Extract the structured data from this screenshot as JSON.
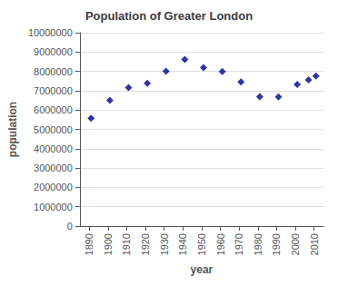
{
  "chart_data": {
    "type": "scatter",
    "title": "Population of Greater London",
    "xlabel": "year",
    "ylabel": "population",
    "x": [
      1891,
      1901,
      1911,
      1921,
      1931,
      1941,
      1951,
      1961,
      1971,
      1981,
      1991,
      2001,
      2007,
      2011
    ],
    "values": [
      5572012,
      6506889,
      7160441,
      7386848,
      8009776,
      8615245,
      8196800,
      7997070,
      7452346,
      6696008,
      6679699,
      7322400,
      7556900,
      7753600
    ],
    "color": "#00008B",
    "marker": "diamond",
    "xlim": [
      1885,
      2015
    ],
    "xticks": [
      1890,
      1900,
      1910,
      1920,
      1930,
      1940,
      1950,
      1960,
      1970,
      1980,
      1990,
      2000,
      2010
    ],
    "ylim": [
      0,
      10000000
    ],
    "yticks": [
      0,
      1000000,
      2000000,
      3000000,
      4000000,
      5000000,
      6000000,
      7000000,
      8000000,
      9000000,
      10000000
    ],
    "grid": true
  }
}
